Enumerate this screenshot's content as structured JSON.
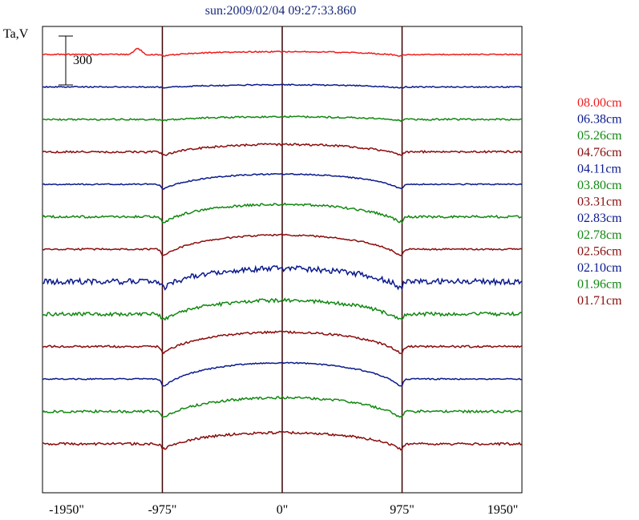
{
  "chart_data": {
    "type": "line",
    "title": "sun:2009/02/04 09:27:33.860",
    "ylabel": "Ta,V",
    "xlabel": "",
    "scale_bar_label": "300",
    "scale_bar_value": 300,
    "x_ticks": [
      -1950,
      -975,
      0,
      975,
      1950
    ],
    "x_tick_labels": [
      "-1950\"",
      "-975\"",
      "0\"",
      "975\"",
      "1950\""
    ],
    "xlim": [
      -1950,
      1950
    ],
    "vertical_lines": [
      -975,
      0,
      975
    ],
    "grid": false,
    "legend_position": "right",
    "series": [
      {
        "name": "08.00cm",
        "color": "#ee1c1c",
        "depth": 80,
        "noise": 3,
        "bump": 95
      },
      {
        "name": "06.38cm",
        "color": "#0a1a8c",
        "depth": 60,
        "noise": 3,
        "bump": 0
      },
      {
        "name": "05.26cm",
        "color": "#118811",
        "depth": 75,
        "noise": 4,
        "bump": 0
      },
      {
        "name": "04.76cm",
        "color": "#8a0c0c",
        "depth": 210,
        "noise": 5,
        "bump": 0
      },
      {
        "name": "04.11cm",
        "color": "#0a1a8c",
        "depth": 290,
        "noise": 3,
        "bump": 0
      },
      {
        "name": "03.80cm",
        "color": "#118811",
        "depth": 350,
        "noise": 6,
        "bump": 0
      },
      {
        "name": "03.31cm",
        "color": "#8a0c0c",
        "depth": 400,
        "noise": 4,
        "bump": 0
      },
      {
        "name": "02.83cm",
        "color": "#0a1a8c",
        "depth": 370,
        "noise": 14,
        "bump": 0
      },
      {
        "name": "02.78cm",
        "color": "#118811",
        "depth": 390,
        "noise": 9,
        "bump": 0
      },
      {
        "name": "02.56cm",
        "color": "#8a0c0c",
        "depth": 410,
        "noise": 5,
        "bump": 0
      },
      {
        "name": "02.10cm",
        "color": "#0a1a8c",
        "depth": 460,
        "noise": 3,
        "bump": 0
      },
      {
        "name": "01.96cm",
        "color": "#118811",
        "depth": 390,
        "noise": 6,
        "bump": 0
      },
      {
        "name": "01.71cm",
        "color": "#8a0c0c",
        "depth": 320,
        "noise": 6,
        "bump": 0
      }
    ]
  }
}
